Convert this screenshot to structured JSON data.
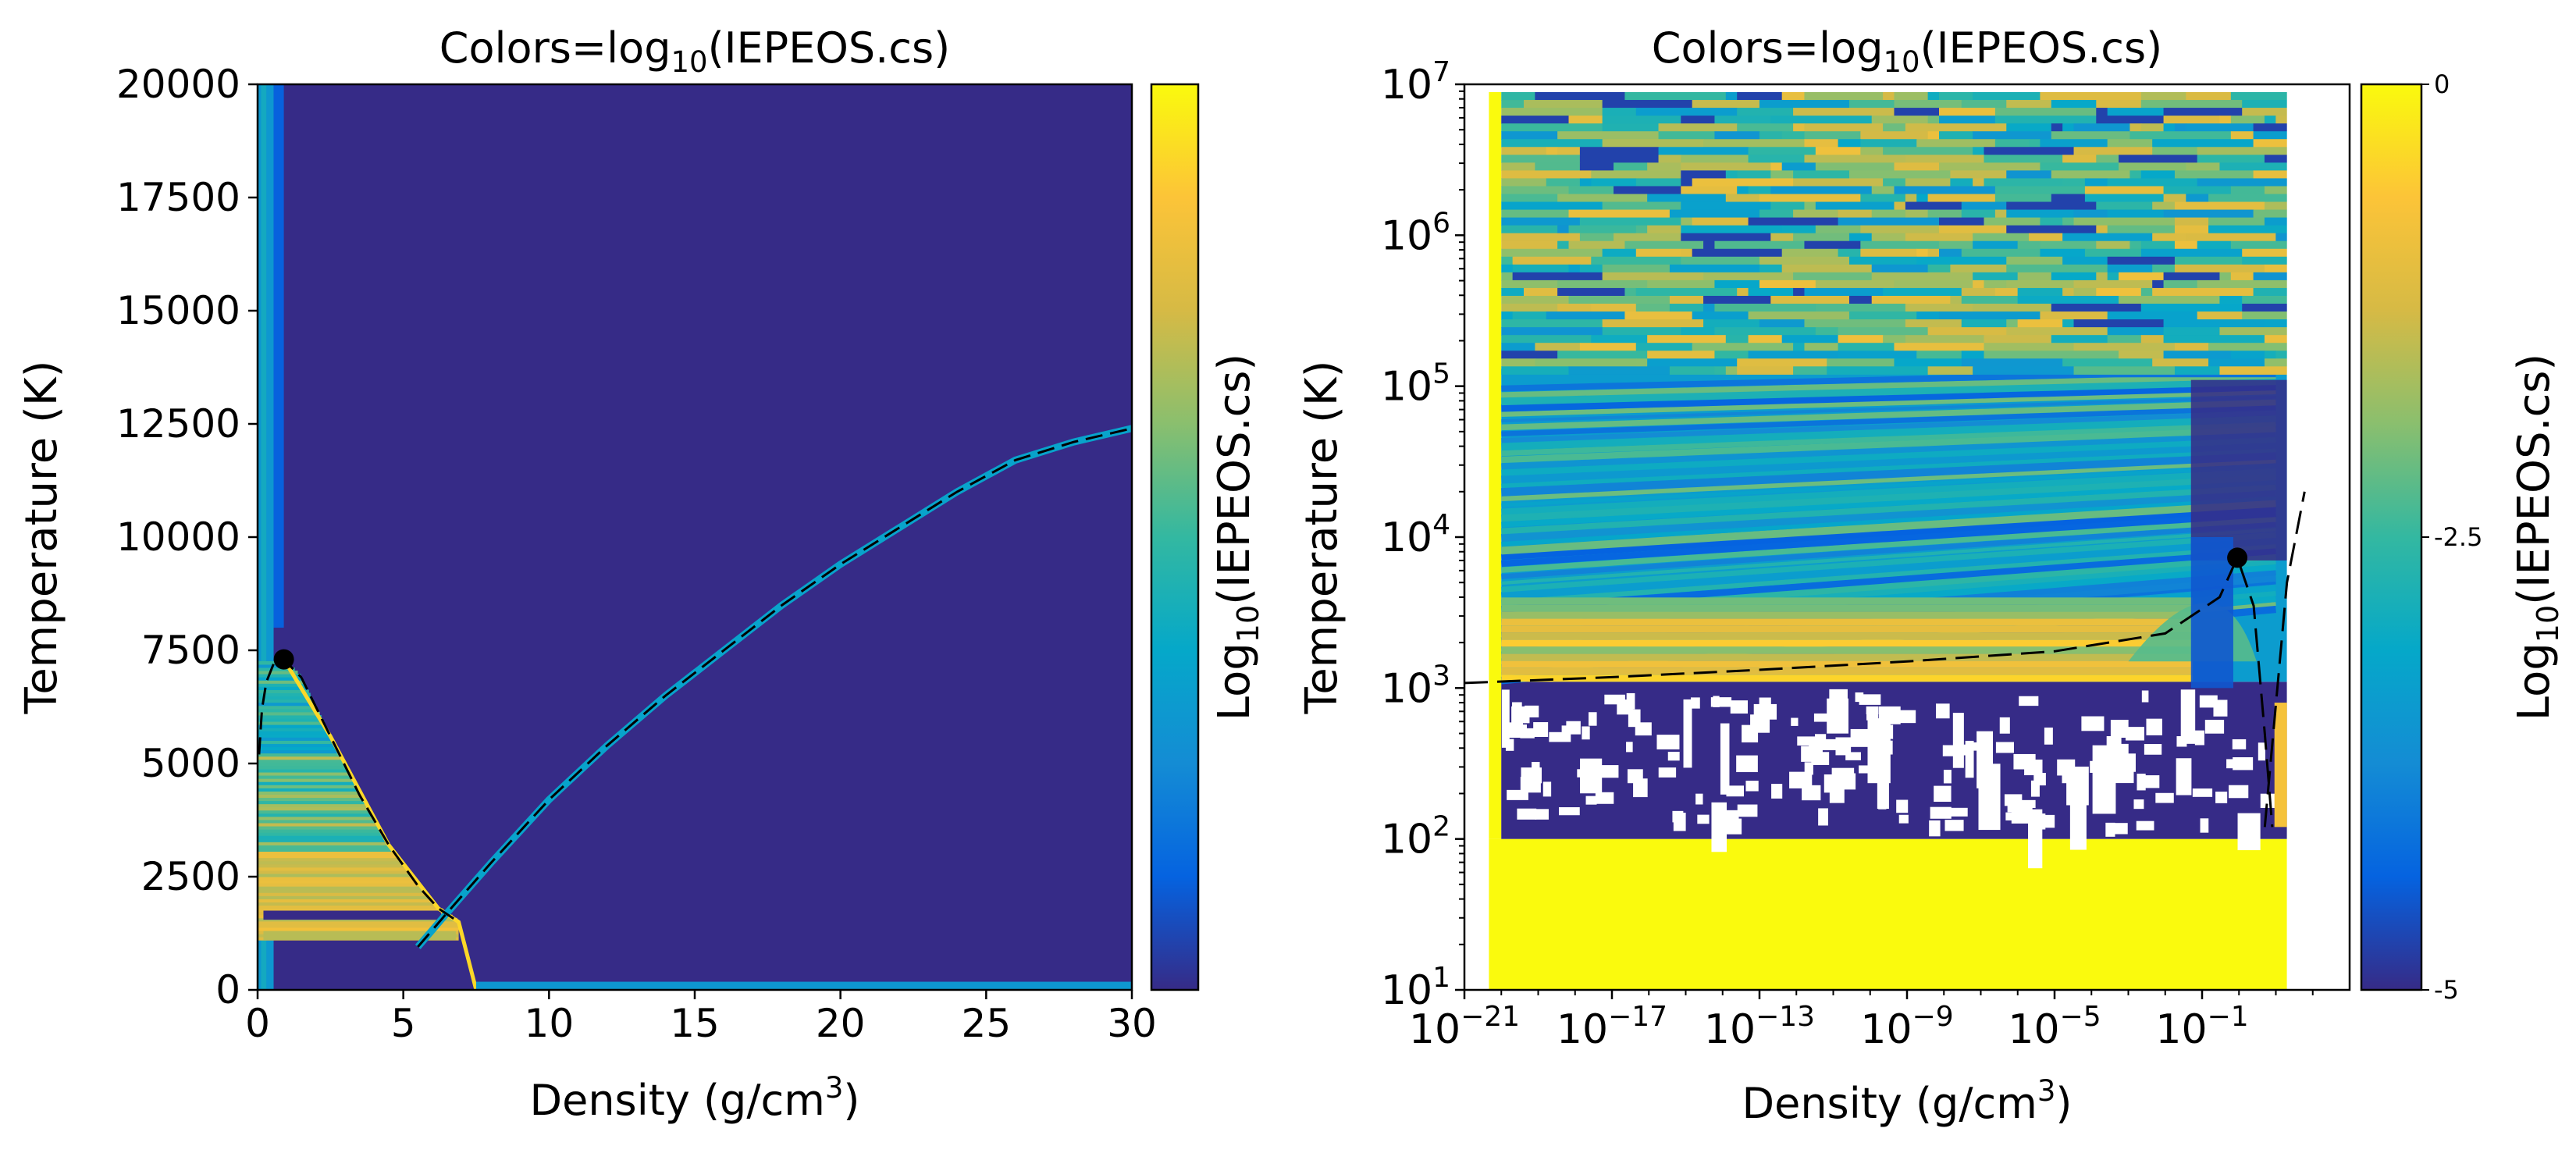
{
  "chart_data": [
    {
      "type": "heatmap",
      "title": "Colors=log10(IEPEOS.cs)",
      "title_parts": {
        "prefix": "Colors=log",
        "sub": "10",
        "suffix": "(IEPEOS.cs)"
      },
      "xlabel": "Density (g/cm3)",
      "xlabel_parts": {
        "prefix": "Density (g/cm",
        "sup": "3",
        "suffix": ")"
      },
      "ylabel": "Temperature (K)",
      "x_scale": "linear",
      "y_scale": "linear",
      "xlim": [
        0,
        30
      ],
      "ylim": [
        0,
        20000
      ],
      "xticks": [
        "0",
        "5",
        "10",
        "15",
        "20",
        "25",
        "30"
      ],
      "yticks": [
        "0",
        "2500",
        "5000",
        "7500",
        "10000",
        "12500",
        "15000",
        "17500",
        "20000"
      ],
      "critical_point": {
        "x": 0.9,
        "y": 7300
      },
      "phase_boundary_curves": [
        {
          "name": "",
          "x": [
            0.05,
            0.15,
            0.3,
            0.55,
            0.9,
            1.5,
            2.5,
            3.5,
            4.5,
            5.5,
            6.2,
            6.9
          ],
          "y": [
            5200,
            6200,
            6800,
            7200,
            7300,
            6900,
            5600,
            4300,
            3200,
            2300,
            1800,
            1500
          ]
        },
        {
          "name": "",
          "x": [
            5.5,
            6.5,
            8,
            10,
            12,
            14,
            16,
            18,
            20,
            22,
            24,
            26,
            28,
            30
          ],
          "y": [
            950,
            1700,
            2800,
            4200,
            5400,
            6500,
            7500,
            8500,
            9400,
            10200,
            11000,
            11700,
            12100,
            12400
          ]
        }
      ],
      "colorbar": {
        "label": "Log10(IEPEOS.cs)",
        "label_parts": {
          "prefix": "Log",
          "sub": "10",
          "suffix": "(IEPEOS.cs)"
        },
        "range": [
          -5,
          0
        ],
        "ticks": []
      }
    },
    {
      "type": "heatmap",
      "title": "Colors=log10(IEPEOS.cs)",
      "title_parts": {
        "prefix": "Colors=log",
        "sub": "10",
        "suffix": "(IEPEOS.cs)"
      },
      "xlabel": "Density (g/cm3)",
      "xlabel_parts": {
        "prefix": "Density (g/cm",
        "sup": "3",
        "suffix": ")"
      },
      "ylabel": "Temperature (K)",
      "x_scale": "log",
      "y_scale": "log",
      "xlim": [
        1e-21,
        1000
      ],
      "ylim": [
        10,
        10000000
      ],
      "xticks": [
        {
          "base": "10",
          "exp": "−21",
          "value": 1e-21
        },
        {
          "base": "10",
          "exp": "−17",
          "value": 1e-17
        },
        {
          "base": "10",
          "exp": "−13",
          "value": 1e-13
        },
        {
          "base": "10",
          "exp": "−9",
          "value": 1e-09
        },
        {
          "base": "10",
          "exp": "−5",
          "value": 1e-05
        },
        {
          "base": "10",
          "exp": "−1",
          "value": 0.1
        }
      ],
      "yticks": [
        {
          "base": "10",
          "exp": "1",
          "value": 10
        },
        {
          "base": "10",
          "exp": "2",
          "value": 100
        },
        {
          "base": "10",
          "exp": "3",
          "value": 1000
        },
        {
          "base": "10",
          "exp": "4",
          "value": 10000
        },
        {
          "base": "10",
          "exp": "5",
          "value": 100000
        },
        {
          "base": "10",
          "exp": "6",
          "value": 1000000
        },
        {
          "base": "10",
          "exp": "7",
          "value": 10000000
        }
      ],
      "critical_point": {
        "x": 0.9,
        "y": 7300
      },
      "phase_boundary_curves": [
        {
          "name": "",
          "x": [
            1e-21,
            1e-17,
            1e-13,
            1e-09,
            1e-05,
            0.01,
            0.3,
            0.9,
            2.5,
            5,
            8
          ],
          "y": [
            1080,
            1180,
            1320,
            1500,
            1750,
            2300,
            4000,
            7300,
            3500,
            500,
            120
          ]
        },
        {
          "name": "",
          "x": [
            5,
            20,
            60
          ],
          "y": [
            120,
            5000,
            20000
          ]
        }
      ],
      "colorbar": {
        "label": "Log10(IEPEOS.cs)",
        "label_parts": {
          "prefix": "Log",
          "sub": "10",
          "suffix": "(IEPEOS.cs)"
        },
        "range": [
          -5,
          0
        ],
        "ticks": [
          "0",
          "-2.5",
          "-5"
        ]
      }
    }
  ]
}
